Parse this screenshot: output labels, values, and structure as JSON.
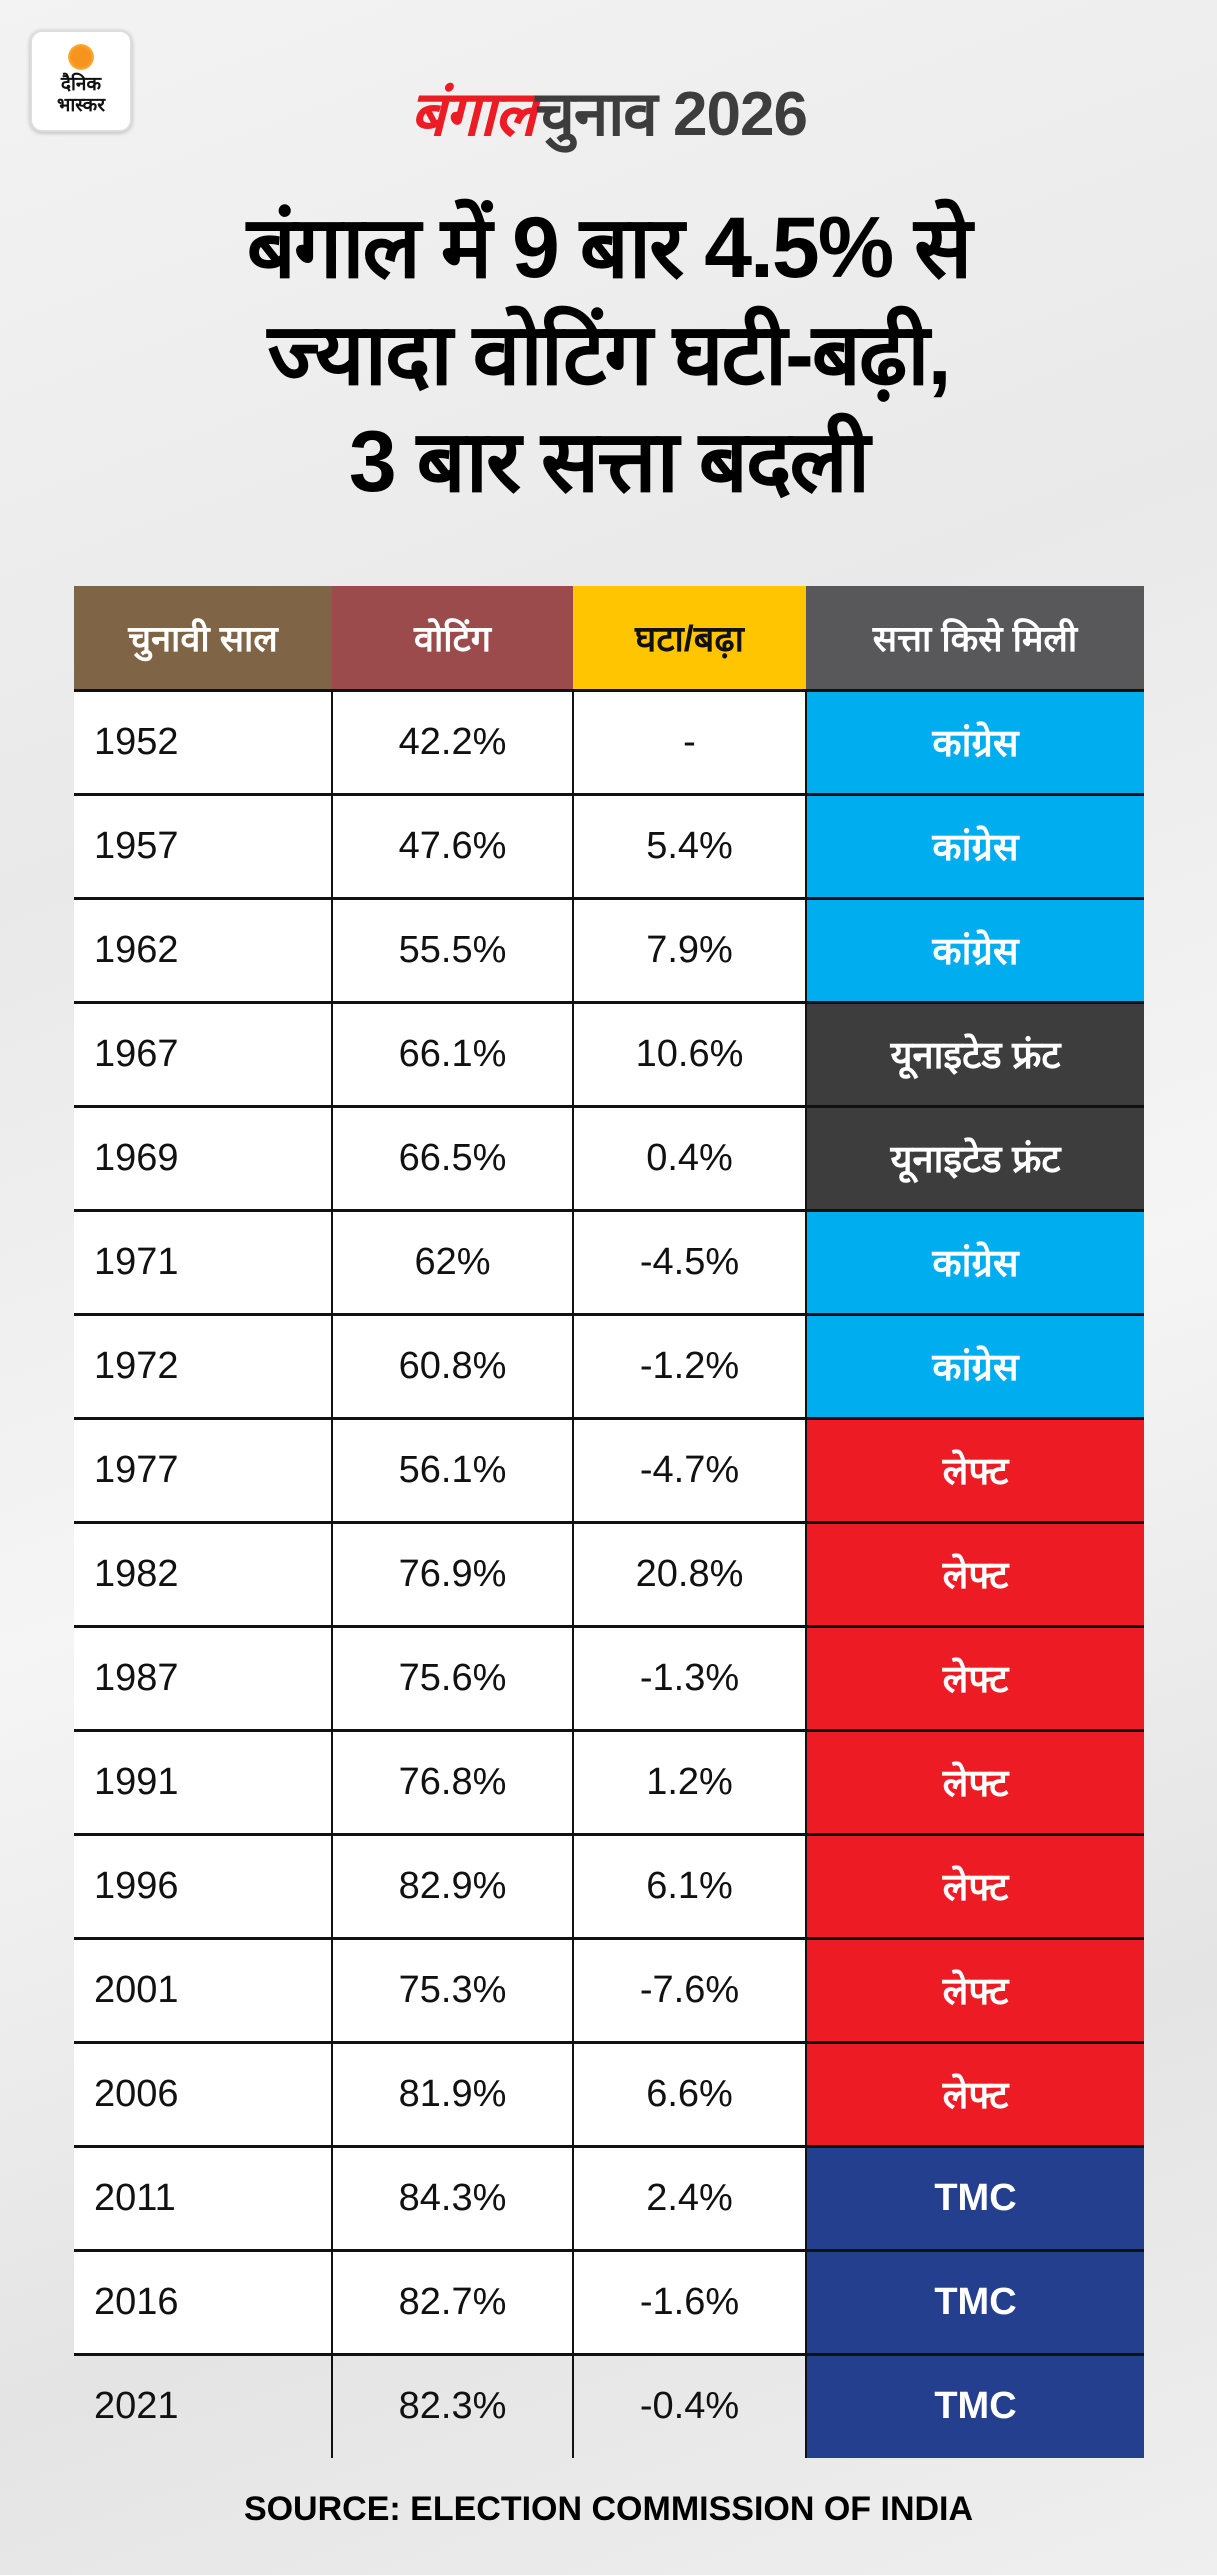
{
  "logo": {
    "line1": "दैनिक",
    "line2": "भास्कर"
  },
  "brand": {
    "part1": "बंगाल",
    "part2": "चुनाव 2026"
  },
  "title": {
    "line1": "बंगाल में 9 बार 4.5% से",
    "line2": "ज्यादा वोटिंग घटी-बढ़ी,",
    "line3": "3 बार सत्ता बदली"
  },
  "table": {
    "headers": [
      "चुनावी साल",
      "वोटिंग",
      "घटा/बढ़ा",
      "सत्ता किसे मिली"
    ],
    "header_colors": [
      "#7f6545",
      "#9b4b4b",
      "#ffc600",
      "#58585a"
    ],
    "party_colors": {
      "कांग्रेस": "#00aeef",
      "यूनाइटेड फ्रंट": "#3d3d3d",
      "लेफ्ट": "#ed1c24",
      "TMC": "#253f8f"
    },
    "rows": [
      {
        "year": "1952",
        "voting": "42.2%",
        "change": "-",
        "party": "कांग्रेस"
      },
      {
        "year": "1957",
        "voting": "47.6%",
        "change": "5.4%",
        "party": "कांग्रेस"
      },
      {
        "year": "1962",
        "voting": "55.5%",
        "change": "7.9%",
        "party": "कांग्रेस"
      },
      {
        "year": "1967",
        "voting": "66.1%",
        "change": "10.6%",
        "party": "यूनाइटेड फ्रंट"
      },
      {
        "year": "1969",
        "voting": "66.5%",
        "change": "0.4%",
        "party": "यूनाइटेड फ्रंट"
      },
      {
        "year": "1971",
        "voting": "62%",
        "change": "-4.5%",
        "party": "कांग्रेस"
      },
      {
        "year": "1972",
        "voting": "60.8%",
        "change": "-1.2%",
        "party": "कांग्रेस"
      },
      {
        "year": "1977",
        "voting": "56.1%",
        "change": "-4.7%",
        "party": "लेफ्ट"
      },
      {
        "year": "1982",
        "voting": "76.9%",
        "change": "20.8%",
        "party": "लेफ्ट"
      },
      {
        "year": "1987",
        "voting": "75.6%",
        "change": "-1.3%",
        "party": "लेफ्ट"
      },
      {
        "year": "1991",
        "voting": "76.8%",
        "change": "1.2%",
        "party": "लेफ्ट"
      },
      {
        "year": "1996",
        "voting": "82.9%",
        "change": "6.1%",
        "party": "लेफ्ट"
      },
      {
        "year": "2001",
        "voting": "75.3%",
        "change": "-7.6%",
        "party": "लेफ्ट"
      },
      {
        "year": "2006",
        "voting": "81.9%",
        "change": "6.6%",
        "party": "लेफ्ट"
      },
      {
        "year": "2011",
        "voting": "84.3%",
        "change": "2.4%",
        "party": "TMC"
      },
      {
        "year": "2016",
        "voting": "82.7%",
        "change": "-1.6%",
        "party": "TMC"
      },
      {
        "year": "2021",
        "voting": "82.3%",
        "change": "-0.4%",
        "party": "TMC"
      }
    ]
  },
  "source": "SOURCE: ELECTION COMMISSION OF INDIA"
}
